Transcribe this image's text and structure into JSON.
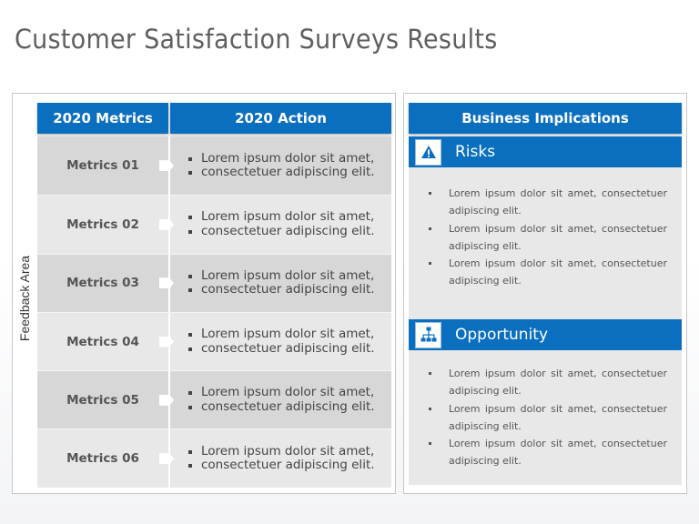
{
  "title": "Customer Satisfaction Surveys Results",
  "feedback_label": "Feedback Area",
  "table": {
    "col1_header": "2020 Metrics",
    "col2_header": "2020 Action",
    "rows": [
      {
        "metric": "Metrics 01",
        "actions": [
          "Lorem ipsum dolor sit amet,",
          "consectetuer adipiscing elit."
        ]
      },
      {
        "metric": "Metrics 02",
        "actions": [
          "Lorem ipsum dolor sit amet,",
          "consectetuer adipiscing elit."
        ]
      },
      {
        "metric": "Metrics 03",
        "actions": [
          "Lorem ipsum dolor sit amet,",
          "consectetuer adipiscing elit."
        ]
      },
      {
        "metric": "Metrics 04",
        "actions": [
          "Lorem ipsum dolor sit amet,",
          "consectetuer adipiscing elit."
        ]
      },
      {
        "metric": "Metrics 05",
        "actions": [
          "Lorem ipsum dolor sit amet,",
          "consectetuer adipiscing elit."
        ]
      },
      {
        "metric": "Metrics 06",
        "actions": [
          "Lorem ipsum dolor sit amet,",
          "consectetuer adipiscing elit."
        ]
      }
    ]
  },
  "business": {
    "header": "Business Implications",
    "risks": {
      "label": "Risks",
      "icon": "warning-icon",
      "items": [
        "Lorem ipsum dolor sit amet, consectetuer adipiscing elit.",
        "Lorem ipsum dolor sit amet, consectetuer adipiscing elit.",
        "Lorem ipsum dolor sit amet, consectetuer adipiscing elit."
      ]
    },
    "opportunity": {
      "label": "Opportunity",
      "icon": "org-chart-icon",
      "items": [
        "Lorem ipsum dolor sit amet, consectetuer adipiscing elit.",
        "Lorem ipsum dolor sit amet, consectetuer adipiscing elit.",
        "Lorem ipsum dolor sit amet, consectetuer adipiscing elit."
      ]
    }
  },
  "colors": {
    "accent": "#0b6fc0",
    "row_dark": "#d7d7d7",
    "row_light": "#e8e8e8"
  }
}
